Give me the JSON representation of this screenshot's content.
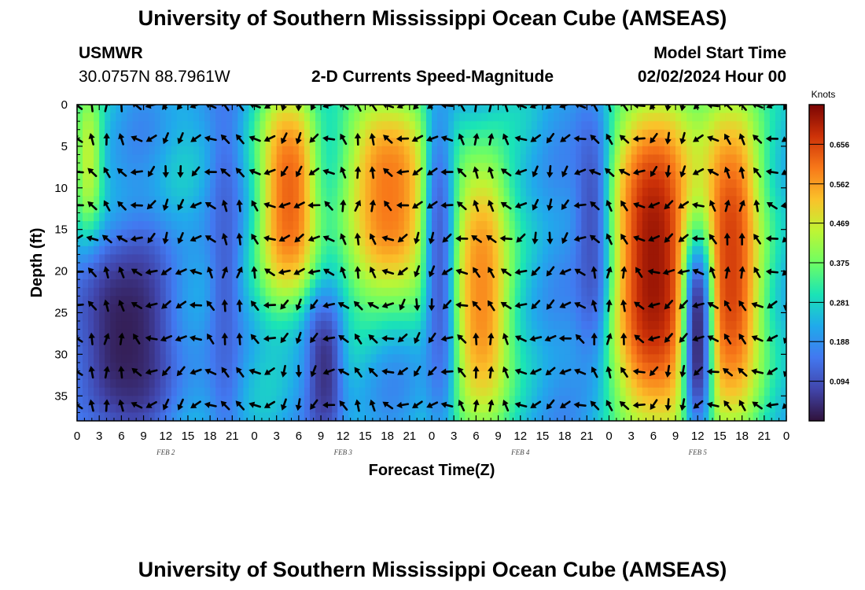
{
  "header": {
    "title": "University of Southern Mississippi Ocean Cube (AMSEAS)",
    "station": "USMWR",
    "coords": "30.0757N  88.7961W",
    "subtitle": "2-D Currents Speed-Magnitude",
    "model_label": "Model Start Time",
    "model_time": "02/02/2024 Hour 00"
  },
  "footer": {
    "title": "University of Southern Mississippi Ocean Cube (AMSEAS)"
  },
  "chart_data": {
    "type": "heatmap",
    "title": "2-D Currents Speed-Magnitude",
    "xlabel": "Forecast Time(Z)",
    "ylabel": "Depth (ft)",
    "x_range_hours": [
      0,
      96
    ],
    "y_range_ft": [
      0,
      38
    ],
    "x_ticks": [
      {
        "h": 0,
        "label": "0"
      },
      {
        "h": 3,
        "label": "3"
      },
      {
        "h": 6,
        "label": "6"
      },
      {
        "h": 9,
        "label": "9"
      },
      {
        "h": 12,
        "label": "12"
      },
      {
        "h": 15,
        "label": "15"
      },
      {
        "h": 18,
        "label": "18"
      },
      {
        "h": 21,
        "label": "21"
      },
      {
        "h": 24,
        "label": "0"
      },
      {
        "h": 27,
        "label": "3"
      },
      {
        "h": 30,
        "label": "6"
      },
      {
        "h": 33,
        "label": "9"
      },
      {
        "h": 36,
        "label": "12"
      },
      {
        "h": 39,
        "label": "15"
      },
      {
        "h": 42,
        "label": "18"
      },
      {
        "h": 45,
        "label": "21"
      },
      {
        "h": 48,
        "label": "0"
      },
      {
        "h": 51,
        "label": "3"
      },
      {
        "h": 54,
        "label": "6"
      },
      {
        "h": 57,
        "label": "9"
      },
      {
        "h": 60,
        "label": "12"
      },
      {
        "h": 63,
        "label": "15"
      },
      {
        "h": 66,
        "label": "18"
      },
      {
        "h": 69,
        "label": "21"
      },
      {
        "h": 72,
        "label": "0"
      },
      {
        "h": 75,
        "label": "3"
      },
      {
        "h": 78,
        "label": "6"
      },
      {
        "h": 81,
        "label": "9"
      },
      {
        "h": 84,
        "label": "12"
      },
      {
        "h": 87,
        "label": "15"
      },
      {
        "h": 90,
        "label": "18"
      },
      {
        "h": 93,
        "label": "21"
      },
      {
        "h": 96,
        "label": "0"
      }
    ],
    "y_ticks": [
      0,
      5,
      10,
      15,
      20,
      25,
      30,
      35
    ],
    "day_labels": [
      {
        "h": 12,
        "label": "FEB 2"
      },
      {
        "h": 36,
        "label": "FEB 3"
      },
      {
        "h": 60,
        "label": "FEB 4"
      },
      {
        "h": 84,
        "label": "FEB 5"
      }
    ],
    "colorbar": {
      "unit": "Knots",
      "min": 0.0,
      "max": 0.75,
      "ticks": [
        0.094,
        0.188,
        0.281,
        0.375,
        0.469,
        0.562,
        0.656
      ],
      "tick_labels": [
        "0.094",
        "0.188",
        "0.281",
        "0.375",
        "0.469",
        "0.562",
        "0.656"
      ]
    },
    "speed_features": [
      {
        "kind": "high",
        "h_start": 0.5,
        "h_end": 2.5,
        "depth_top": 0,
        "depth_bottom": 15,
        "peak": 0.45
      },
      {
        "kind": "high",
        "h_start": 25.5,
        "h_end": 32,
        "depth_top": 0,
        "depth_bottom": 22,
        "peak": 0.62
      },
      {
        "kind": "high",
        "h_start": 37,
        "h_end": 47.5,
        "depth_top": 0,
        "depth_bottom": 22,
        "peak": 0.6
      },
      {
        "kind": "high",
        "h_start": 51.5,
        "h_end": 58,
        "depth_top": 7,
        "depth_bottom": 38,
        "peak": 0.58
      },
      {
        "kind": "high",
        "h_start": 73,
        "h_end": 83,
        "depth_top": 0,
        "depth_bottom": 38,
        "peak": 0.72
      },
      {
        "kind": "high",
        "h_start": 85,
        "h_end": 92,
        "depth_top": 0,
        "depth_bottom": 38,
        "peak": 0.66
      },
      {
        "kind": "low",
        "h_start": 0,
        "h_end": 13,
        "depth_top": 18,
        "depth_bottom": 38,
        "peak": 0.02
      },
      {
        "kind": "low",
        "h_start": 19,
        "h_end": 21,
        "depth_top": 2,
        "depth_bottom": 38,
        "peak": 0.12
      },
      {
        "kind": "low",
        "h_start": 32,
        "h_end": 35,
        "depth_top": 26,
        "depth_bottom": 38,
        "peak": 0.05
      },
      {
        "kind": "low",
        "h_start": 48,
        "h_end": 50,
        "depth_top": 0,
        "depth_bottom": 38,
        "peak": 0.12
      },
      {
        "kind": "low",
        "h_start": 68,
        "h_end": 71,
        "depth_top": 0,
        "depth_bottom": 30,
        "peak": 0.1
      },
      {
        "kind": "low",
        "h_start": 83,
        "h_end": 85,
        "depth_top": 18,
        "depth_bottom": 38,
        "peak": 0.04
      }
    ],
    "vector_grid": {
      "times_hours_step": 2,
      "depths_ft": [
        0,
        4,
        8,
        12,
        16,
        20,
        24,
        28,
        32,
        36
      ]
    }
  }
}
